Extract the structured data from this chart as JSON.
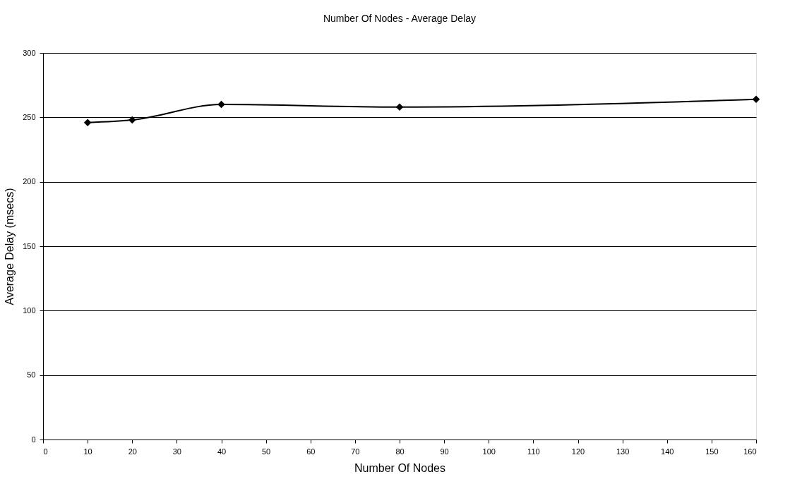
{
  "chart_data": {
    "type": "line",
    "title": "Number Of Nodes -  Average Delay",
    "xlabel": "Number Of Nodes",
    "ylabel": "Average Delay (msecs)",
    "x": [
      10,
      20,
      40,
      80,
      160
    ],
    "series": [
      {
        "color": "#000000",
        "values": [
          246,
          248,
          260,
          258,
          264
        ]
      }
    ],
    "xlim": [
      0,
      160
    ],
    "xticks": [
      0,
      10,
      20,
      30,
      40,
      50,
      60,
      70,
      80,
      90,
      100,
      110,
      120,
      130,
      140,
      150,
      160
    ],
    "ylim": [
      0,
      300
    ],
    "yticks": [
      0,
      50,
      100,
      150,
      200,
      250,
      300
    ],
    "grid": "y",
    "legend": false,
    "marker": "diamond",
    "line_style": "solid"
  }
}
